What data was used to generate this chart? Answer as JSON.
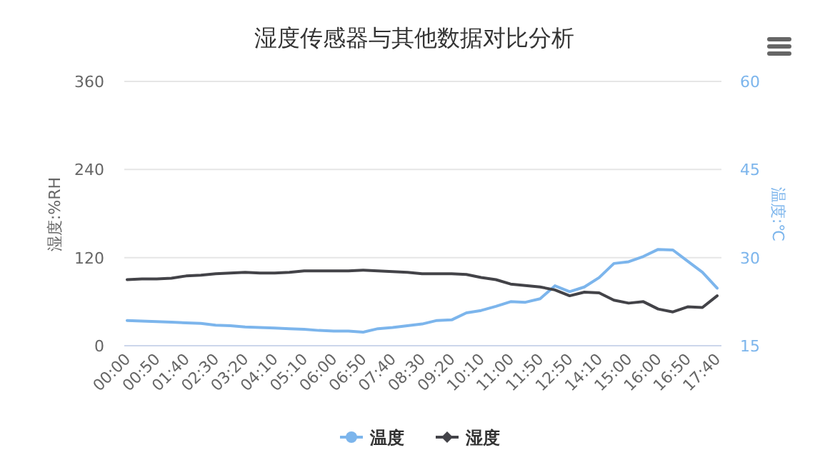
{
  "chart_data": {
    "type": "line",
    "title": "湿度传感器与其他数据对比分析",
    "categories": [
      "00:00",
      null,
      "00:50",
      null,
      "01:40",
      null,
      "02:30",
      null,
      "03:20",
      null,
      "04:10",
      null,
      "05:10",
      null,
      "06:00",
      null,
      "06:50",
      null,
      "07:40",
      null,
      "08:30",
      null,
      "09:20",
      null,
      "10:10",
      null,
      "11:00",
      null,
      "11:50",
      null,
      "12:50",
      null,
      "14:10",
      null,
      "15:00",
      null,
      "16:00",
      null,
      "16:50",
      null,
      "17:40"
    ],
    "series": [
      {
        "name": "温度",
        "color": "#7cb5ec",
        "axis": "y2",
        "values": [
          19.3,
          19.2,
          19.1,
          19.0,
          18.9,
          18.8,
          18.5,
          18.4,
          18.2,
          18.1,
          18.0,
          17.9,
          17.8,
          17.6,
          17.5,
          17.5,
          17.3,
          17.9,
          18.1,
          18.4,
          18.7,
          19.3,
          19.4,
          20.6,
          21.0,
          21.7,
          22.5,
          22.4,
          23.0,
          25.2,
          24.2,
          25.0,
          26.6,
          29.0,
          29.3,
          30.2,
          31.4,
          31.3,
          29.4,
          27.5,
          24.8
        ]
      },
      {
        "name": "湿度",
        "color": "#434348",
        "values": [
          90,
          91,
          91,
          92,
          95,
          96,
          98,
          99,
          100,
          99,
          99,
          100,
          102,
          102,
          102,
          102,
          103,
          102,
          101,
          100,
          98,
          98,
          98,
          97,
          93,
          90,
          84,
          82,
          80,
          76,
          68,
          73,
          72,
          62,
          58,
          60,
          50,
          46,
          53,
          52,
          68
        ]
      }
    ],
    "ylabel": "湿度:%RH",
    "y2label": "温度:℃",
    "ylim": [
      0,
      360
    ],
    "yticks": [
      0,
      120,
      240,
      360
    ],
    "y2lim": [
      15,
      60
    ],
    "y2ticks": [
      15,
      30,
      45,
      60
    ],
    "grid": "y",
    "legend": "bottom"
  }
}
